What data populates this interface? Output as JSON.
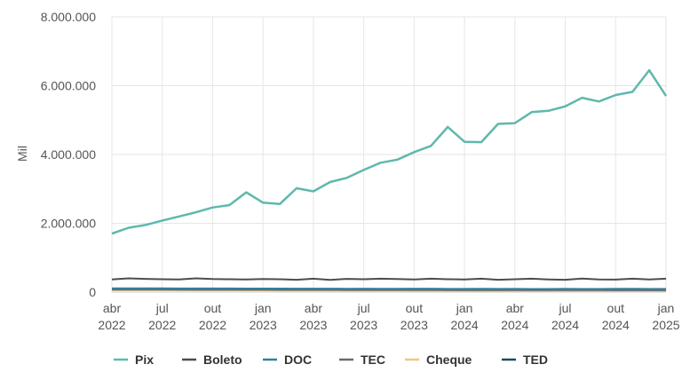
{
  "chart_data": {
    "type": "line",
    "ylabel": "Mil",
    "ylim": [
      0,
      8000000
    ],
    "y_ticks": [
      {
        "value": 0,
        "label": "0"
      },
      {
        "value": 2000000,
        "label": "2.000.000"
      },
      {
        "value": 4000000,
        "label": "4.000.000"
      },
      {
        "value": 6000000,
        "label": "6.000.000"
      },
      {
        "value": 8000000,
        "label": "8.000.000"
      }
    ],
    "x": [
      "2022-04",
      "2022-05",
      "2022-06",
      "2022-07",
      "2022-08",
      "2022-09",
      "2022-10",
      "2022-11",
      "2022-12",
      "2023-01",
      "2023-02",
      "2023-03",
      "2023-04",
      "2023-05",
      "2023-06",
      "2023-07",
      "2023-08",
      "2023-09",
      "2023-10",
      "2023-11",
      "2023-12",
      "2024-01",
      "2024-02",
      "2024-03",
      "2024-04",
      "2024-05",
      "2024-06",
      "2024-07",
      "2024-08",
      "2024-09",
      "2024-10",
      "2024-11",
      "2024-12",
      "2025-01"
    ],
    "x_ticks": [
      {
        "month": "2022-04",
        "line1": "abr",
        "line2": "2022"
      },
      {
        "month": "2022-07",
        "line1": "jul",
        "line2": "2022"
      },
      {
        "month": "2022-10",
        "line1": "out",
        "line2": "2022"
      },
      {
        "month": "2023-01",
        "line1": "jan",
        "line2": "2023"
      },
      {
        "month": "2023-04",
        "line1": "abr",
        "line2": "2023"
      },
      {
        "month": "2023-07",
        "line1": "jul",
        "line2": "2023"
      },
      {
        "month": "2023-10",
        "line1": "out",
        "line2": "2023"
      },
      {
        "month": "2024-01",
        "line1": "jan",
        "line2": "2024"
      },
      {
        "month": "2024-04",
        "line1": "abr",
        "line2": "2024"
      },
      {
        "month": "2024-07",
        "line1": "jul",
        "line2": "2024"
      },
      {
        "month": "2024-10",
        "line1": "out",
        "line2": "2024"
      },
      {
        "month": "2025-01",
        "line1": "jan",
        "line2": "2025"
      }
    ],
    "grid": "vertical and horizontal",
    "legend_position": "bottom",
    "series": [
      {
        "name": "Pix",
        "color": "#5fb8ad",
        "values": [
          1700000,
          1870000,
          1950000,
          2080000,
          2200000,
          2320000,
          2460000,
          2530000,
          2900000,
          2600000,
          2560000,
          3020000,
          2930000,
          3200000,
          3320000,
          3550000,
          3760000,
          3850000,
          4070000,
          4250000,
          4800000,
          4370000,
          4360000,
          4890000,
          4910000,
          5230000,
          5270000,
          5400000,
          5650000,
          5540000,
          5730000,
          5820000,
          6450000,
          5700000
        ]
      },
      {
        "name": "Boleto",
        "color": "#4d4d4d",
        "values": [
          370000,
          400000,
          385000,
          375000,
          370000,
          400000,
          380000,
          375000,
          370000,
          380000,
          375000,
          360000,
          390000,
          355000,
          385000,
          375000,
          390000,
          380000,
          370000,
          390000,
          375000,
          370000,
          390000,
          360000,
          375000,
          390000,
          370000,
          360000,
          395000,
          370000,
          365000,
          390000,
          370000,
          390000
        ]
      },
      {
        "name": "DOC",
        "color": "#2f7fa0",
        "values": [
          110000,
          110000,
          108000,
          108000,
          107000,
          106000,
          105000,
          105000,
          104000,
          103000,
          102000,
          101000,
          100000,
          100000,
          99000,
          98000,
          97000,
          96000,
          96000,
          95000,
          94000,
          93000,
          93000,
          92000,
          91000,
          90000,
          90000,
          89000,
          88000,
          88000,
          87000,
          86000,
          86000,
          85000
        ]
      },
      {
        "name": "TEC",
        "color": "#6b6b6b",
        "values": [
          70000,
          70000,
          69000,
          69000,
          68000,
          68000,
          67000,
          67000,
          66000,
          66000,
          65000,
          65000,
          64000,
          64000,
          63000,
          63000,
          62000,
          62000,
          61000,
          61000,
          60000,
          60000,
          59000,
          59000,
          58000,
          58000,
          57000,
          57000,
          56000,
          56000,
          55000,
          55000,
          54000,
          54000
        ]
      },
      {
        "name": "Cheque",
        "color": "#f4c57a",
        "values": [
          60000,
          59000,
          58000,
          57000,
          56000,
          55000,
          54000,
          53000,
          52000,
          51000,
          50000,
          49000,
          48000,
          47000,
          46000,
          45000,
          44000,
          43000,
          42000,
          41000,
          40000,
          39000,
          38000,
          37000,
          36000,
          35000,
          34000,
          33000,
          32000,
          31000,
          30000,
          29000,
          28000,
          27000
        ]
      },
      {
        "name": "TED",
        "color": "#1d4a5e",
        "values": [
          90000,
          92000,
          91000,
          90000,
          93000,
          91000,
          90000,
          92000,
          91000,
          90000,
          92000,
          91000,
          93000,
          90000,
          91000,
          92000,
          90000,
          91000,
          93000,
          92000,
          91000,
          90000,
          92000,
          91000,
          93000,
          90000,
          91000,
          92000,
          90000,
          91000,
          93000,
          92000,
          91000,
          90000
        ]
      }
    ]
  }
}
